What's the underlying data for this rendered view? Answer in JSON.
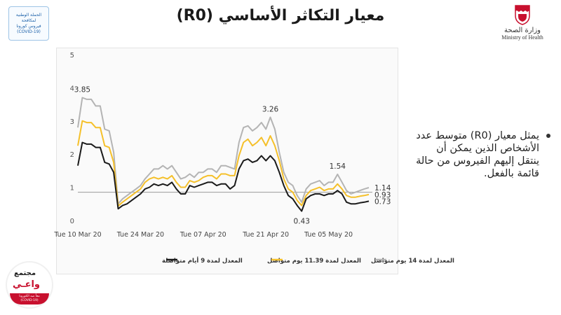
{
  "title": "معيار التكاثر الأساسي (R0)",
  "campaign_badge": {
    "lines": [
      "الحملة الوطنية",
      "لمكافحة",
      "فيروس كورونا",
      "(COVID-19)"
    ]
  },
  "ministry": {
    "arabic": "وزارة الصحة",
    "english": "Ministry of Health"
  },
  "bullet_text": "يمثل معيار (R0) متوسط عدد الأشخاص الذين يمكن أن ينتقل إليهم الفيروس من حالة قائمة بالفعل.",
  "community_logo": {
    "line1": "مجتمع",
    "line2": "واعـي",
    "line3": "معاً ضد الكورونا",
    "line4": "(COVID-19)"
  },
  "colors": {
    "gray_series": "#b4b4b4",
    "yellow_series": "#f5c02a",
    "black_series": "#1a1a1a",
    "reference_line": "#9a9a9a"
  },
  "chart_data": {
    "type": "line",
    "title": "",
    "xlabel": "",
    "ylabel": "",
    "ylim": [
      0,
      5
    ],
    "yticks": [
      0,
      1,
      2,
      3,
      4,
      5
    ],
    "x_ticks": [
      {
        "index": 0,
        "label": "Tue 10 Mar 20"
      },
      {
        "index": 14,
        "label": "Tue 24 Mar 20"
      },
      {
        "index": 28,
        "label": "Tue 07 Apr 20"
      },
      {
        "index": 42,
        "label": "Tue 21 Apr 20"
      },
      {
        "index": 56,
        "label": "Tue 05 May 20"
      }
    ],
    "reference_line": 1,
    "grid": false,
    "legend_position": "bottom",
    "series": [
      {
        "name": "المعدل لمدة 14 يوم متواصل",
        "color": "#b4b4b4",
        "values": [
          2.95,
          3.85,
          3.8,
          3.8,
          3.6,
          3.6,
          2.9,
          2.85,
          2.2,
          0.65,
          0.8,
          0.9,
          1.0,
          1.1,
          1.2,
          1.4,
          1.55,
          1.7,
          1.7,
          1.8,
          1.7,
          1.8,
          1.6,
          1.4,
          1.45,
          1.55,
          1.45,
          1.6,
          1.6,
          1.7,
          1.7,
          1.6,
          1.8,
          1.8,
          1.75,
          1.7,
          2.5,
          2.95,
          3.0,
          2.85,
          2.95,
          3.1,
          2.9,
          3.26,
          2.9,
          2.2,
          1.6,
          1.3,
          1.2,
          0.9,
          0.7,
          1.1,
          1.25,
          1.3,
          1.35,
          1.2,
          1.3,
          1.3,
          1.54,
          1.3,
          1.05,
          0.95,
          1.0,
          1.05,
          1.1,
          1.14
        ]
      },
      {
        "name": "المعدل لمدة 11.39 يوم متواصل",
        "color": "#f5c02a",
        "values": [
          2.4,
          3.15,
          3.1,
          3.1,
          2.95,
          2.95,
          2.4,
          2.35,
          1.9,
          0.58,
          0.7,
          0.8,
          0.9,
          1.0,
          1.1,
          1.3,
          1.4,
          1.45,
          1.4,
          1.45,
          1.4,
          1.5,
          1.3,
          1.15,
          1.15,
          1.35,
          1.3,
          1.35,
          1.45,
          1.5,
          1.5,
          1.4,
          1.55,
          1.55,
          1.5,
          1.5,
          2.1,
          2.5,
          2.6,
          2.4,
          2.5,
          2.65,
          2.4,
          2.7,
          2.4,
          1.95,
          1.4,
          1.1,
          1.0,
          0.75,
          0.6,
          0.9,
          1.05,
          1.1,
          1.15,
          1.05,
          1.1,
          1.1,
          1.25,
          1.1,
          0.9,
          0.85,
          0.85,
          0.88,
          0.9,
          0.93
        ]
      },
      {
        "name": "المعدل لمدة 9 أيام متواصلة",
        "color": "#1a1a1a",
        "values": [
          1.8,
          2.5,
          2.45,
          2.45,
          2.35,
          2.35,
          1.9,
          1.85,
          1.6,
          0.5,
          0.6,
          0.65,
          0.75,
          0.85,
          0.95,
          1.1,
          1.15,
          1.25,
          1.2,
          1.25,
          1.2,
          1.3,
          1.1,
          0.95,
          0.95,
          1.2,
          1.15,
          1.2,
          1.25,
          1.3,
          1.3,
          1.2,
          1.25,
          1.25,
          1.1,
          1.2,
          1.7,
          1.95,
          2.0,
          1.9,
          1.95,
          2.1,
          1.95,
          2.1,
          1.95,
          1.6,
          1.2,
          0.9,
          0.8,
          0.6,
          0.43,
          0.8,
          0.9,
          0.95,
          0.95,
          0.9,
          0.95,
          0.95,
          1.05,
          0.95,
          0.7,
          0.65,
          0.65,
          0.68,
          0.7,
          0.73
        ]
      }
    ],
    "annotations": [
      {
        "series": 0,
        "index": 1,
        "text": "3.85",
        "anchor": "above"
      },
      {
        "series": 0,
        "index": 43,
        "text": "3.26",
        "anchor": "above"
      },
      {
        "series": 2,
        "index": 50,
        "text": "0.43",
        "anchor": "below"
      },
      {
        "series": 0,
        "index": 58,
        "text": "1.54",
        "anchor": "above"
      },
      {
        "series": 0,
        "index": 65,
        "text": "1.14",
        "anchor": "right"
      },
      {
        "series": 1,
        "index": 65,
        "text": "0.93",
        "anchor": "right"
      },
      {
        "series": 2,
        "index": 65,
        "text": "0.73",
        "anchor": "right"
      }
    ]
  }
}
